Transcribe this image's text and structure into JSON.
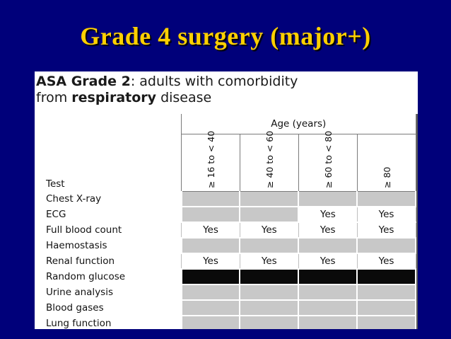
{
  "slide": {
    "title": "Grade 4 surgery (major+)"
  },
  "card": {
    "heading_line1_prefix": "ASA Grade 2",
    "heading_line1_suffix": ": adults with comorbidity",
    "heading_line2_prefix": "from ",
    "heading_line2_bold": "respiratory",
    "heading_line2_suffix": " disease"
  },
  "table": {
    "age_header": "Age (years)",
    "test_header": "Test",
    "age_columns": [
      "≥ 16 to < 40",
      "≥ 40 to < 60",
      "≥ 60 to < 80",
      "≥ 80"
    ],
    "rows": [
      {
        "test": "Chest X-ray",
        "values": [
          "",
          "",
          "",
          ""
        ],
        "dark": false
      },
      {
        "test": "ECG",
        "values": [
          "",
          "",
          "Yes",
          "Yes"
        ],
        "dark": false
      },
      {
        "test": "Full blood count",
        "values": [
          "Yes",
          "Yes",
          "Yes",
          "Yes"
        ],
        "dark": false
      },
      {
        "test": "Haemostasis",
        "values": [
          "",
          "",
          "",
          ""
        ],
        "dark": false
      },
      {
        "test": "Renal function",
        "values": [
          "Yes",
          "Yes",
          "Yes",
          "Yes"
        ],
        "dark": false
      },
      {
        "test": "Random glucose",
        "values": [
          "",
          "",
          "",
          ""
        ],
        "dark": true
      },
      {
        "test": "Urine analysis",
        "values": [
          "",
          "",
          "",
          ""
        ],
        "dark": false
      },
      {
        "test": "Blood gases",
        "values": [
          "",
          "",
          "",
          ""
        ],
        "dark": false
      },
      {
        "test": "Lung function",
        "values": [
          "",
          "",
          "",
          ""
        ],
        "dark": false
      }
    ]
  }
}
